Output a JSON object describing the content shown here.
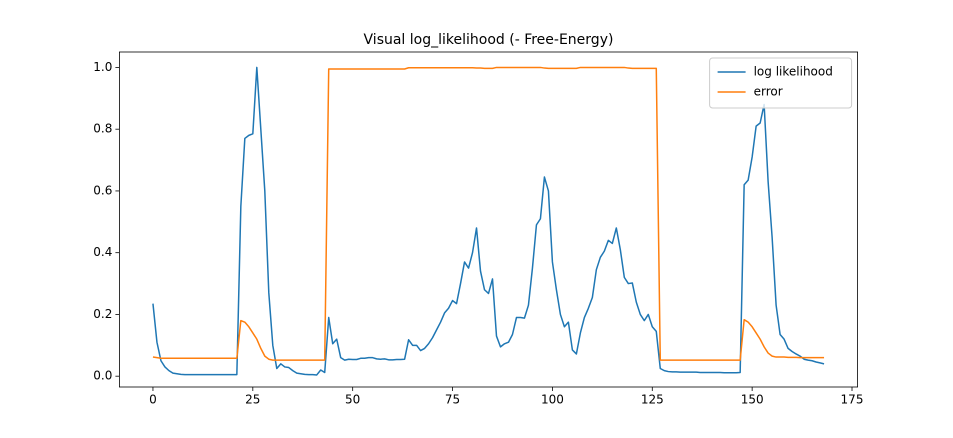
{
  "chart_data": {
    "type": "line",
    "title": "Visual log_likelihood (- Free-Energy)",
    "x": [
      0,
      1,
      2,
      3,
      4,
      5,
      6,
      7,
      8,
      9,
      10,
      11,
      12,
      13,
      14,
      15,
      16,
      17,
      18,
      19,
      20,
      21,
      22,
      23,
      24,
      25,
      26,
      27,
      28,
      29,
      30,
      31,
      32,
      33,
      34,
      35,
      36,
      37,
      38,
      39,
      40,
      41,
      42,
      43,
      44,
      45,
      46,
      47,
      48,
      49,
      50,
      51,
      52,
      53,
      54,
      55,
      56,
      57,
      58,
      59,
      60,
      61,
      62,
      63,
      64,
      65,
      66,
      67,
      68,
      69,
      70,
      71,
      72,
      73,
      74,
      75,
      76,
      77,
      78,
      79,
      80,
      81,
      82,
      83,
      84,
      85,
      86,
      87,
      88,
      89,
      90,
      91,
      92,
      93,
      94,
      95,
      96,
      97,
      98,
      99,
      100,
      101,
      102,
      103,
      104,
      105,
      106,
      107,
      108,
      109,
      110,
      111,
      112,
      113,
      114,
      115,
      116,
      117,
      118,
      119,
      120,
      121,
      122,
      123,
      124,
      125,
      126,
      127,
      128,
      129,
      130,
      131,
      132,
      133,
      134,
      135,
      136,
      137,
      138,
      139,
      140,
      141,
      142,
      143,
      144,
      145,
      146,
      147,
      148,
      149,
      150,
      151,
      152,
      153,
      154,
      155,
      156,
      157,
      158,
      159,
      160,
      161,
      162,
      163,
      164,
      165,
      166,
      167,
      168
    ],
    "series": [
      {
        "name": "log likelihood",
        "color": "#1f77b4",
        "values": [
          0.235,
          0.11,
          0.05,
          0.03,
          0.018,
          0.01,
          0.008,
          0.006,
          0.005,
          0.005,
          0.005,
          0.005,
          0.005,
          0.005,
          0.005,
          0.005,
          0.005,
          0.005,
          0.005,
          0.005,
          0.005,
          0.005,
          0.55,
          0.77,
          0.78,
          0.785,
          1.0,
          0.8,
          0.6,
          0.27,
          0.1,
          0.025,
          0.04,
          0.03,
          0.028,
          0.018,
          0.01,
          0.008,
          0.006,
          0.005,
          0.005,
          0.004,
          0.02,
          0.012,
          0.19,
          0.105,
          0.12,
          0.06,
          0.052,
          0.055,
          0.054,
          0.054,
          0.058,
          0.058,
          0.06,
          0.06,
          0.056,
          0.055,
          0.056,
          0.053,
          0.053,
          0.054,
          0.054,
          0.055,
          0.118,
          0.1,
          0.1,
          0.083,
          0.09,
          0.105,
          0.125,
          0.15,
          0.175,
          0.205,
          0.22,
          0.245,
          0.235,
          0.3,
          0.37,
          0.35,
          0.4,
          0.48,
          0.34,
          0.28,
          0.268,
          0.315,
          0.13,
          0.095,
          0.105,
          0.11,
          0.135,
          0.19,
          0.19,
          0.188,
          0.23,
          0.35,
          0.49,
          0.51,
          0.645,
          0.6,
          0.37,
          0.28,
          0.2,
          0.16,
          0.175,
          0.085,
          0.072,
          0.14,
          0.19,
          0.22,
          0.255,
          0.345,
          0.385,
          0.405,
          0.44,
          0.43,
          0.48,
          0.41,
          0.32,
          0.3,
          0.302,
          0.24,
          0.2,
          0.18,
          0.2,
          0.16,
          0.145,
          0.025,
          0.018,
          0.015,
          0.014,
          0.014,
          0.013,
          0.013,
          0.013,
          0.013,
          0.013,
          0.012,
          0.012,
          0.012,
          0.012,
          0.012,
          0.012,
          0.011,
          0.011,
          0.011,
          0.011,
          0.012,
          0.62,
          0.635,
          0.71,
          0.81,
          0.82,
          0.88,
          0.63,
          0.45,
          0.23,
          0.135,
          0.12,
          0.09,
          0.08,
          0.072,
          0.065,
          0.055,
          0.052,
          0.05,
          0.046,
          0.043,
          0.04
        ]
      },
      {
        "name": "error",
        "color": "#ff7f0e",
        "values": [
          0.062,
          0.06,
          0.058,
          0.058,
          0.058,
          0.058,
          0.058,
          0.058,
          0.058,
          0.058,
          0.058,
          0.058,
          0.058,
          0.058,
          0.058,
          0.058,
          0.058,
          0.058,
          0.058,
          0.058,
          0.058,
          0.058,
          0.18,
          0.175,
          0.16,
          0.14,
          0.12,
          0.09,
          0.065,
          0.055,
          0.052,
          0.052,
          0.052,
          0.052,
          0.052,
          0.052,
          0.052,
          0.052,
          0.052,
          0.052,
          0.052,
          0.052,
          0.052,
          0.052,
          0.995,
          0.995,
          0.995,
          0.995,
          0.995,
          0.995,
          0.995,
          0.995,
          0.995,
          0.995,
          0.995,
          0.995,
          0.995,
          0.995,
          0.995,
          0.995,
          0.995,
          0.995,
          0.995,
          0.995,
          0.999,
          0.999,
          0.999,
          0.999,
          0.999,
          0.999,
          0.999,
          0.999,
          0.999,
          0.999,
          0.999,
          0.999,
          0.999,
          0.999,
          0.999,
          0.999,
          0.999,
          0.998,
          0.998,
          0.997,
          0.997,
          0.997,
          1.0,
          1.0,
          1.0,
          1.0,
          1.0,
          1.0,
          1.0,
          1.0,
          1.0,
          1.0,
          1.0,
          1.0,
          0.998,
          0.997,
          0.997,
          0.997,
          0.997,
          0.997,
          0.997,
          0.997,
          0.997,
          1.0,
          1.0,
          1.0,
          1.0,
          1.0,
          1.0,
          1.0,
          1.0,
          1.0,
          1.0,
          1.0,
          1.0,
          0.998,
          0.997,
          0.997,
          0.997,
          0.997,
          0.997,
          0.997,
          0.997,
          0.052,
          0.052,
          0.052,
          0.052,
          0.052,
          0.052,
          0.052,
          0.052,
          0.052,
          0.052,
          0.052,
          0.052,
          0.052,
          0.052,
          0.052,
          0.052,
          0.052,
          0.052,
          0.052,
          0.052,
          0.052,
          0.183,
          0.175,
          0.16,
          0.14,
          0.12,
          0.095,
          0.075,
          0.065,
          0.062,
          0.062,
          0.062,
          0.061,
          0.061,
          0.061,
          0.06,
          0.06,
          0.06,
          0.06,
          0.06,
          0.06,
          0.06
        ]
      }
    ],
    "xlim": [
      -8.4,
      176.4
    ],
    "xticks": [
      0,
      25,
      50,
      75,
      100,
      125,
      150,
      175
    ],
    "ylim": [
      -0.035,
      1.05
    ],
    "yticks": [
      {
        "value": 0,
        "label": "0.0"
      },
      {
        "value": 0.2,
        "label": "0.2"
      },
      {
        "value": 0.4,
        "label": "0.4"
      },
      {
        "value": 0.6,
        "label": "0.6"
      },
      {
        "value": 0.8,
        "label": "0.8"
      },
      {
        "value": 1.0,
        "label": "1.0"
      }
    ],
    "grid": false,
    "legend": "upper right"
  }
}
